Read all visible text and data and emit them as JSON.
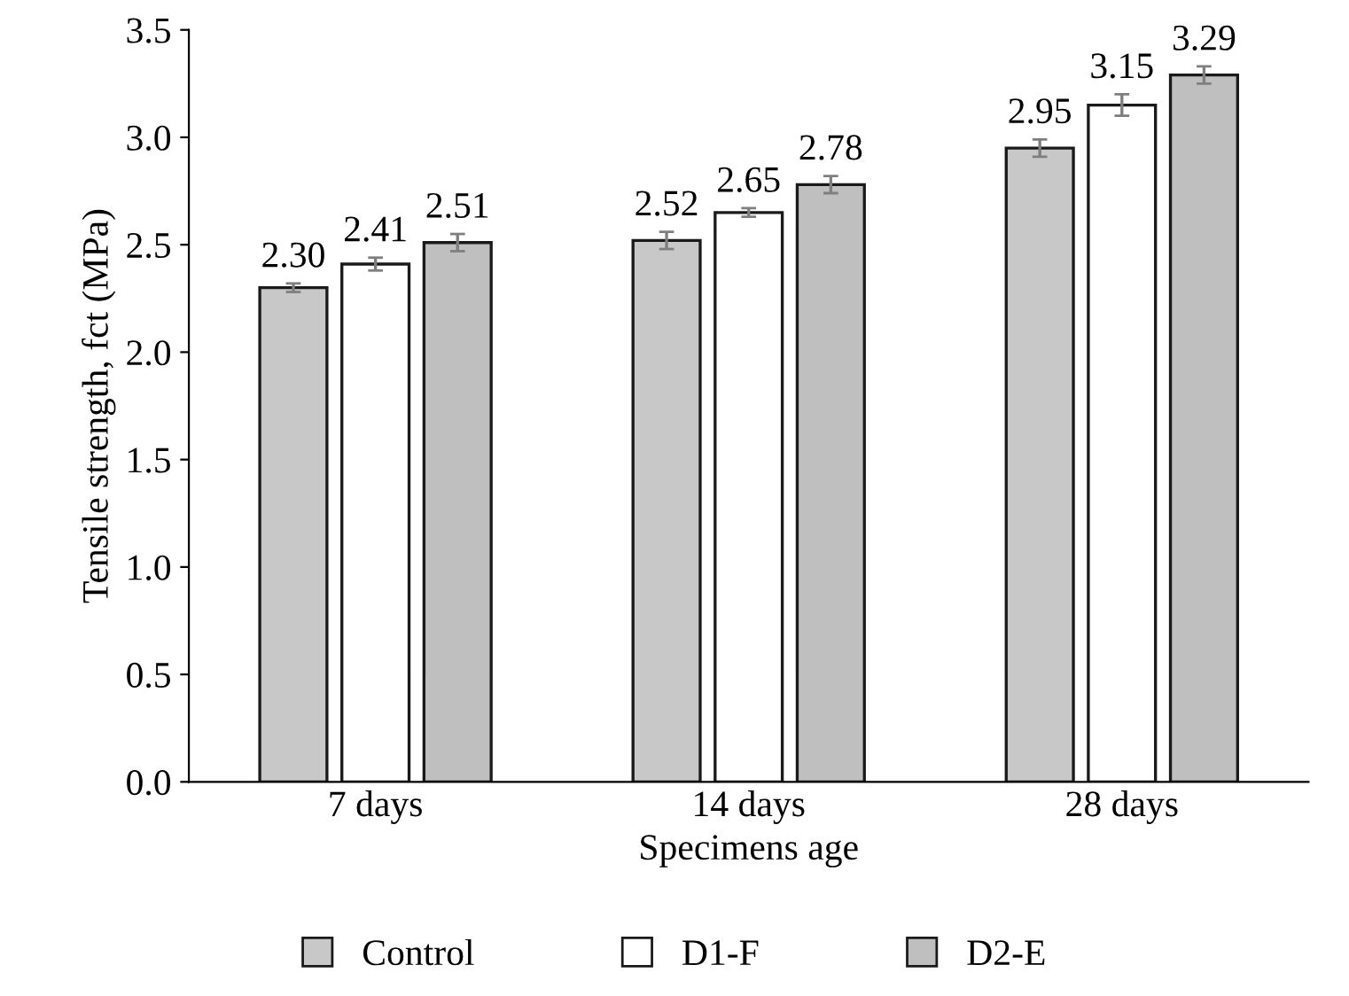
{
  "chart_data": {
    "type": "bar",
    "xlabel": "Specimens age",
    "ylabel": "Tensile strength, fct (MPa)",
    "categories": [
      "7 days",
      "14 days",
      "28 days"
    ],
    "series": [
      {
        "name": "Control",
        "color": "#c8c8c8",
        "values": [
          2.3,
          2.52,
          2.95
        ],
        "errors": [
          0.02,
          0.04,
          0.04
        ],
        "value_labels": [
          "2.30",
          "2.52",
          "2.95"
        ]
      },
      {
        "name": "D1-F",
        "color": "#ffffff",
        "values": [
          2.41,
          2.65,
          3.15
        ],
        "errors": [
          0.03,
          0.02,
          0.05
        ],
        "value_labels": [
          "2.41",
          "2.65",
          "3.15"
        ]
      },
      {
        "name": "D2-E",
        "color": "#bfbfbf",
        "values": [
          2.51,
          2.78,
          3.29
        ],
        "errors": [
          0.04,
          0.04,
          0.04
        ],
        "value_labels": [
          "2.51",
          "2.78",
          "3.29"
        ]
      }
    ],
    "ylim": [
      0,
      3.5
    ],
    "yticks": [
      {
        "value": 0,
        "label": "0.0"
      },
      {
        "value": 0.5,
        "label": "0.5"
      },
      {
        "value": 1,
        "label": "1.0"
      },
      {
        "value": 1.5,
        "label": "1.5"
      },
      {
        "value": 2,
        "label": "2.0"
      },
      {
        "value": 2.5,
        "label": "2.5"
      },
      {
        "value": 3,
        "label": "3.0"
      },
      {
        "value": 3.5,
        "label": "3.5"
      }
    ],
    "legend": "bottom",
    "grid": false
  }
}
